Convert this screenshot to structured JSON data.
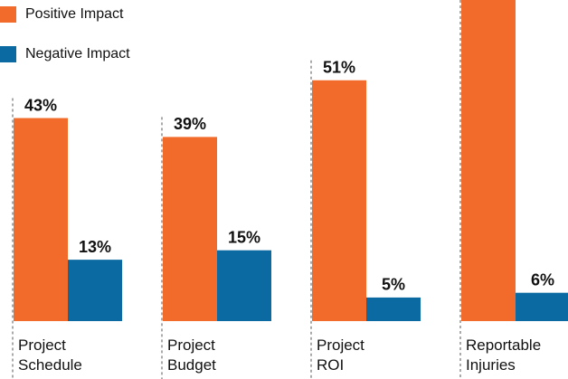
{
  "chart_data": {
    "type": "bar",
    "categories": [
      "Project Schedule",
      "Project Budget",
      "Project ROI",
      "Reportable Injuries"
    ],
    "series": [
      {
        "name": "Positive Impact",
        "color": "#f26b2a",
        "values": [
          43,
          39,
          51,
          70
        ],
        "value_labels": [
          "43%",
          "39%",
          "51%",
          null
        ]
      },
      {
        "name": "Negative Impact",
        "color": "#0a6aa1",
        "values": [
          13,
          15,
          5,
          6
        ],
        "value_labels": [
          "13%",
          "15%",
          "5%",
          "6%"
        ]
      }
    ],
    "ylim": [
      0,
      68
    ]
  }
}
